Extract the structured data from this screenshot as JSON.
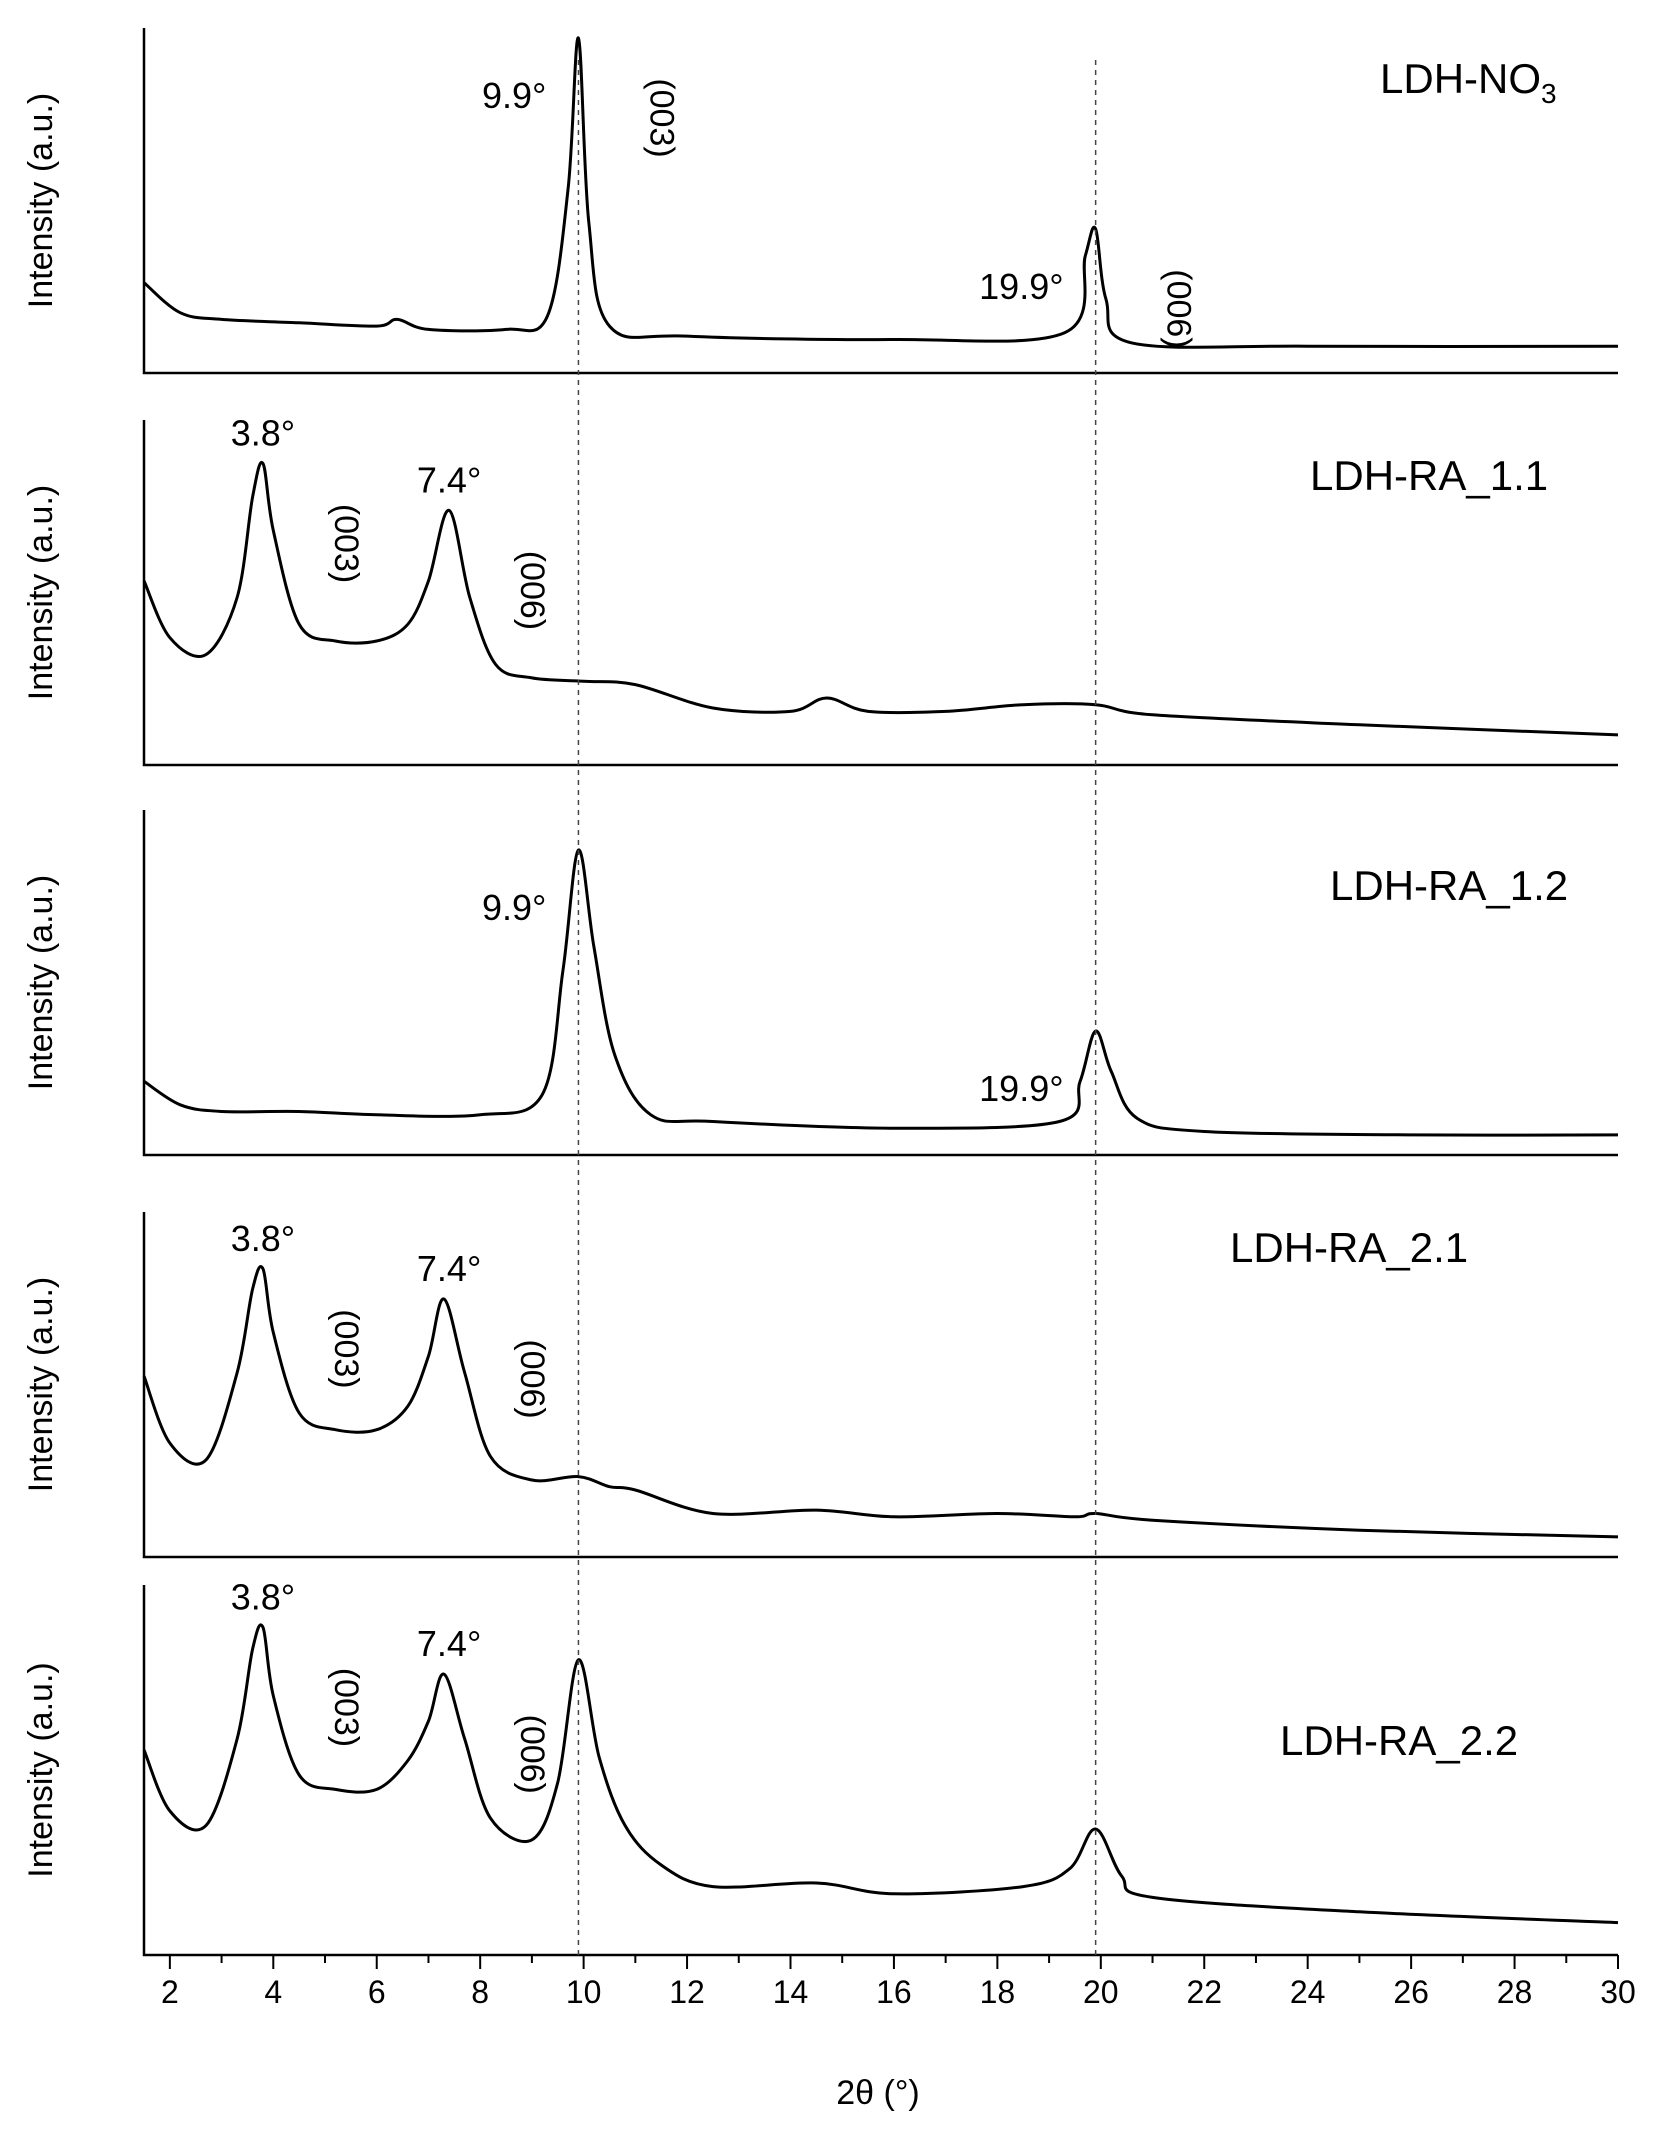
{
  "chart_data": {
    "type": "line",
    "title": "",
    "xlabel": "2θ (°)",
    "xlim": [
      1.5,
      30
    ],
    "xticks": [
      2,
      4,
      6,
      8,
      10,
      12,
      14,
      16,
      18,
      20,
      22,
      24,
      26,
      28,
      30
    ],
    "reference_lines_x": [
      9.9,
      19.9
    ],
    "panels": [
      {
        "name": "LDH-NO3",
        "label": "LDH-NO",
        "label_sub": "3",
        "ylabel": "Intensity (a.u.)",
        "series": {
          "x": [
            1.5,
            2.2,
            3.0,
            4.5,
            6.0,
            6.4,
            7.0,
            8.5,
            9.3,
            9.7,
            9.9,
            10.1,
            10.5,
            12.0,
            16.0,
            19.3,
            19.7,
            19.9,
            20.1,
            20.6,
            24.0,
            30.0
          ],
          "y": [
            0.27,
            0.18,
            0.16,
            0.15,
            0.14,
            0.16,
            0.13,
            0.13,
            0.17,
            0.55,
            1.0,
            0.45,
            0.14,
            0.11,
            0.1,
            0.12,
            0.35,
            0.43,
            0.22,
            0.09,
            0.08,
            0.08
          ]
        },
        "peak_labels": [
          {
            "x": 9.9,
            "text": "9.9°"
          },
          {
            "x": 19.9,
            "text": "19.9°"
          }
        ],
        "miller_labels": [
          {
            "x": 9.9,
            "text": "(003)"
          },
          {
            "x": 19.9,
            "text": "(006)"
          }
        ]
      },
      {
        "name": "LDH-RA_1.1",
        "label": "LDH-RA_1.1",
        "ylabel": "Intensity (a.u.)",
        "series": {
          "x": [
            1.5,
            2.0,
            2.7,
            3.3,
            3.6,
            3.8,
            4.0,
            4.5,
            5.2,
            6.0,
            6.6,
            7.0,
            7.4,
            7.8,
            8.3,
            9.0,
            10.0,
            11.0,
            12.5,
            14.0,
            14.7,
            15.5,
            17.0,
            18.5,
            19.9,
            21.0,
            25.0,
            30.0
          ],
          "y": [
            0.55,
            0.38,
            0.33,
            0.5,
            0.8,
            0.9,
            0.7,
            0.42,
            0.37,
            0.37,
            0.42,
            0.55,
            0.76,
            0.5,
            0.3,
            0.26,
            0.25,
            0.24,
            0.17,
            0.16,
            0.2,
            0.16,
            0.16,
            0.18,
            0.18,
            0.15,
            0.12,
            0.09
          ]
        },
        "peak_labels": [
          {
            "x": 3.8,
            "text": "3.8°"
          },
          {
            "x": 7.4,
            "text": "7.4°"
          }
        ],
        "miller_labels": [
          {
            "x": 3.8,
            "text": "(003)"
          },
          {
            "x": 7.4,
            "text": "(006)"
          }
        ]
      },
      {
        "name": "LDH-RA_1.2",
        "label": "LDH-RA_1.2",
        "ylabel": "Intensity (a.u.)",
        "series": {
          "x": [
            1.5,
            2.2,
            3.0,
            4.5,
            6.0,
            8.0,
            9.2,
            9.6,
            9.9,
            10.2,
            10.6,
            11.3,
            12.5,
            16.0,
            19.2,
            19.6,
            19.9,
            20.2,
            20.7,
            22.0,
            26.0,
            30.0
          ],
          "y": [
            0.22,
            0.15,
            0.13,
            0.13,
            0.12,
            0.12,
            0.18,
            0.55,
            0.91,
            0.62,
            0.3,
            0.12,
            0.1,
            0.08,
            0.1,
            0.22,
            0.37,
            0.25,
            0.11,
            0.07,
            0.06,
            0.06
          ]
        },
        "peak_labels": [
          {
            "x": 9.9,
            "text": "9.9°"
          },
          {
            "x": 19.9,
            "text": "19.9°"
          }
        ],
        "miller_labels": []
      },
      {
        "name": "LDH-RA_2.1",
        "label": "LDH-RA_2.1",
        "ylabel": "Intensity (a.u.)",
        "series": {
          "x": [
            1.5,
            2.0,
            2.7,
            3.3,
            3.6,
            3.8,
            4.0,
            4.5,
            5.2,
            6.0,
            6.6,
            7.0,
            7.3,
            7.7,
            8.2,
            9.0,
            9.9,
            10.5,
            11.0,
            12.5,
            14.5,
            16.0,
            18.0,
            19.5,
            19.9,
            21.0,
            25.0,
            30.0
          ],
          "y": [
            0.54,
            0.34,
            0.29,
            0.55,
            0.8,
            0.86,
            0.67,
            0.43,
            0.38,
            0.38,
            0.45,
            0.6,
            0.77,
            0.55,
            0.3,
            0.23,
            0.24,
            0.21,
            0.2,
            0.13,
            0.14,
            0.12,
            0.13,
            0.12,
            0.13,
            0.11,
            0.08,
            0.06
          ]
        },
        "peak_labels": [
          {
            "x": 3.8,
            "text": "3.8°"
          },
          {
            "x": 7.4,
            "text": "7.4°"
          }
        ],
        "miller_labels": [
          {
            "x": 3.8,
            "text": "(003)"
          },
          {
            "x": 7.4,
            "text": "(006)"
          }
        ]
      },
      {
        "name": "LDH-RA_2.2",
        "label": "LDH-RA_2.2",
        "ylabel": "Intensity (a.u.)",
        "series": {
          "x": [
            1.5,
            2.0,
            2.7,
            3.3,
            3.6,
            3.8,
            4.0,
            4.5,
            5.2,
            6.0,
            6.6,
            7.0,
            7.3,
            7.7,
            8.2,
            9.0,
            9.5,
            9.9,
            10.3,
            10.8,
            11.5,
            12.5,
            14.5,
            16.0,
            18.5,
            19.4,
            19.9,
            20.4,
            21.0,
            25.0,
            30.0
          ],
          "y": [
            0.57,
            0.4,
            0.36,
            0.6,
            0.85,
            0.91,
            0.72,
            0.5,
            0.46,
            0.46,
            0.54,
            0.65,
            0.78,
            0.6,
            0.38,
            0.32,
            0.48,
            0.82,
            0.55,
            0.36,
            0.25,
            0.19,
            0.2,
            0.17,
            0.19,
            0.24,
            0.35,
            0.22,
            0.16,
            0.12,
            0.09
          ]
        },
        "peak_labels": [
          {
            "x": 3.8,
            "text": "3.8°"
          },
          {
            "x": 7.4,
            "text": "7.4°"
          }
        ],
        "miller_labels": [
          {
            "x": 3.8,
            "text": "(003)"
          },
          {
            "x": 7.4,
            "text": "(006)"
          }
        ]
      }
    ]
  }
}
